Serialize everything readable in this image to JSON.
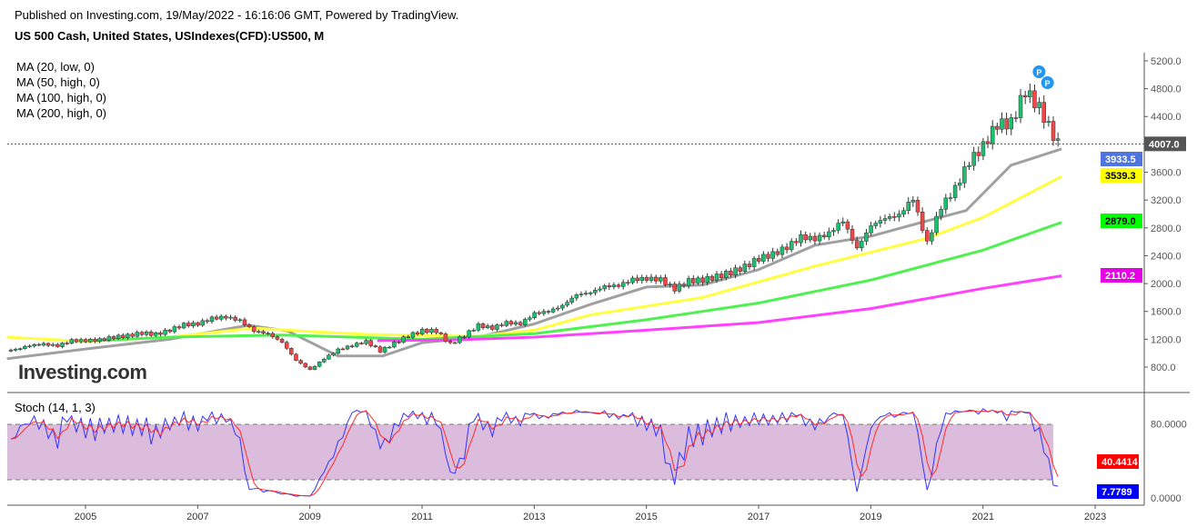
{
  "header": {
    "published": "Published on Investing.com, 19/May/2022 - 16:16:06 GMT, Powered by TradingView.",
    "symbol": "US 500 Cash, United States, USIndexes(CFD):US500, M"
  },
  "legend": [
    "MA (20, low, 0)",
    "MA (50, high, 0)",
    "MA (100, high, 0)",
    "MA (200, high, 0)"
  ],
  "logo": "Investing.com",
  "stoch_label": "Stoch (14, 1, 3)",
  "chart_data": {
    "type": "candlestick",
    "title": "US 500 Cash, United States, USIndexes(CFD):US500, M",
    "xticks": [
      "2005",
      "2007",
      "2009",
      "2011",
      "2013",
      "2015",
      "2017",
      "2019",
      "2021",
      "2023"
    ],
    "yticks": [
      "800.0",
      "1200.0",
      "1600.0",
      "2000.0",
      "2400.0",
      "2800.0",
      "3200.0",
      "3600.0",
      "4400.0",
      "4800.0",
      "5200.0"
    ],
    "ylim": [
      800,
      5200
    ],
    "approx_quarterly_closes": [
      [
        2003.75,
        1050
      ],
      [
        2004,
        1110
      ],
      [
        2004.25,
        1130
      ],
      [
        2004.5,
        1105
      ],
      [
        2004.75,
        1180
      ],
      [
        2005,
        1180
      ],
      [
        2005.25,
        1190
      ],
      [
        2005.5,
        1230
      ],
      [
        2005.75,
        1250
      ],
      [
        2006,
        1290
      ],
      [
        2006.25,
        1270
      ],
      [
        2006.5,
        1330
      ],
      [
        2006.75,
        1410
      ],
      [
        2007,
        1420
      ],
      [
        2007.25,
        1500
      ],
      [
        2007.5,
        1520
      ],
      [
        2007.75,
        1470
      ],
      [
        2008,
        1320
      ],
      [
        2008.25,
        1280
      ],
      [
        2008.5,
        1160
      ],
      [
        2008.75,
        900
      ],
      [
        2009,
        760
      ],
      [
        2009.25,
        920
      ],
      [
        2009.5,
        1050
      ],
      [
        2009.75,
        1110
      ],
      [
        2010,
        1170
      ],
      [
        2010.25,
        1030
      ],
      [
        2010.5,
        1140
      ],
      [
        2010.75,
        1250
      ],
      [
        2011,
        1320
      ],
      [
        2011.25,
        1320
      ],
      [
        2011.5,
        1130
      ],
      [
        2011.75,
        1250
      ],
      [
        2012,
        1400
      ],
      [
        2012.25,
        1360
      ],
      [
        2012.5,
        1440
      ],
      [
        2012.75,
        1420
      ],
      [
        2013,
        1570
      ],
      [
        2013.25,
        1600
      ],
      [
        2013.5,
        1680
      ],
      [
        2013.75,
        1840
      ],
      [
        2014,
        1870
      ],
      [
        2014.25,
        1960
      ],
      [
        2014.5,
        1970
      ],
      [
        2014.75,
        2060
      ],
      [
        2015,
        2070
      ],
      [
        2015.25,
        2060
      ],
      [
        2015.5,
        1920
      ],
      [
        2015.75,
        2040
      ],
      [
        2016,
        2050
      ],
      [
        2016.25,
        2100
      ],
      [
        2016.5,
        2160
      ],
      [
        2016.75,
        2240
      ],
      [
        2017,
        2360
      ],
      [
        2017.25,
        2420
      ],
      [
        2017.5,
        2520
      ],
      [
        2017.75,
        2670
      ],
      [
        2018,
        2640
      ],
      [
        2018.25,
        2720
      ],
      [
        2018.5,
        2910
      ],
      [
        2018.75,
        2500
      ],
      [
        2019,
        2830
      ],
      [
        2019.25,
        2940
      ],
      [
        2019.5,
        2980
      ],
      [
        2019.75,
        3230
      ],
      [
        2020,
        2580
      ],
      [
        2020.25,
        3100
      ],
      [
        2020.5,
        3360
      ],
      [
        2020.75,
        3750
      ],
      [
        2021,
        3970
      ],
      [
        2021.25,
        4290
      ],
      [
        2021.5,
        4300
      ],
      [
        2021.75,
        4770
      ],
      [
        2022,
        4530
      ],
      [
        2022.25,
        4130
      ],
      [
        2022.4,
        3930
      ]
    ],
    "moving_averages": [
      {
        "name": "MA (20, low, 0)",
        "color": "#a0a0a0",
        "last": "3933.5",
        "label_bg": "#4f74e0",
        "label_fg": "#ffffff",
        "points": [
          [
            2003.6,
            920
          ],
          [
            2005,
            1060
          ],
          [
            2006.5,
            1200
          ],
          [
            2007.9,
            1400
          ],
          [
            2008.6,
            1320
          ],
          [
            2009.5,
            960
          ],
          [
            2010.3,
            960
          ],
          [
            2011,
            1150
          ],
          [
            2012,
            1230
          ],
          [
            2013,
            1420
          ],
          [
            2014,
            1700
          ],
          [
            2015,
            1950
          ],
          [
            2016,
            1980
          ],
          [
            2017,
            2200
          ],
          [
            2018,
            2550
          ],
          [
            2019,
            2680
          ],
          [
            2020,
            2900
          ],
          [
            2020.7,
            3050
          ],
          [
            2021.5,
            3700
          ],
          [
            2022.4,
            3933.5
          ]
        ]
      },
      {
        "name": "MA (50, high, 0)",
        "color": "#ffff40",
        "last": "3539.3",
        "label_bg": "#ffff00",
        "label_fg": "#000000",
        "points": [
          [
            2003.6,
            1230
          ],
          [
            2005,
            1170
          ],
          [
            2006.5,
            1230
          ],
          [
            2008,
            1360
          ],
          [
            2009,
            1310
          ],
          [
            2010,
            1270
          ],
          [
            2012,
            1240
          ],
          [
            2013,
            1330
          ],
          [
            2014,
            1550
          ],
          [
            2016,
            1800
          ],
          [
            2018,
            2250
          ],
          [
            2020,
            2650
          ],
          [
            2021,
            2950
          ],
          [
            2022.4,
            3539.3
          ]
        ]
      },
      {
        "name": "MA (100, high, 0)",
        "color": "#50f050",
        "last": "2879.0",
        "label_bg": "#00ff00",
        "label_fg": "#000000",
        "points": [
          [
            2005.2,
            1180
          ],
          [
            2006.5,
            1230
          ],
          [
            2008.5,
            1260
          ],
          [
            2011,
            1200
          ],
          [
            2013,
            1280
          ],
          [
            2015,
            1480
          ],
          [
            2017,
            1720
          ],
          [
            2019,
            2050
          ],
          [
            2021,
            2480
          ],
          [
            2022.4,
            2879.0
          ]
        ]
      },
      {
        "name": "MA (200, high, 0)",
        "color": "#ff40ff",
        "last": "2110.2",
        "label_bg": "#e600e6",
        "label_fg": "#ffffff",
        "points": [
          [
            2010.2,
            1180
          ],
          [
            2011.5,
            1190
          ],
          [
            2013,
            1230
          ],
          [
            2015,
            1330
          ],
          [
            2017,
            1440
          ],
          [
            2019,
            1640
          ],
          [
            2021,
            1930
          ],
          [
            2022.4,
            2110.2
          ]
        ]
      }
    ],
    "last_price": "4007.0",
    "stochastic": {
      "name": "Stoch (14, 1, 3)",
      "yticks": [
        "0.0000",
        "80.0000"
      ],
      "bands": [
        20,
        80
      ],
      "k_last": "7.7789",
      "d_last": "40.4414",
      "k_color": "#3333ff",
      "d_color": "#ff2a2a"
    }
  }
}
